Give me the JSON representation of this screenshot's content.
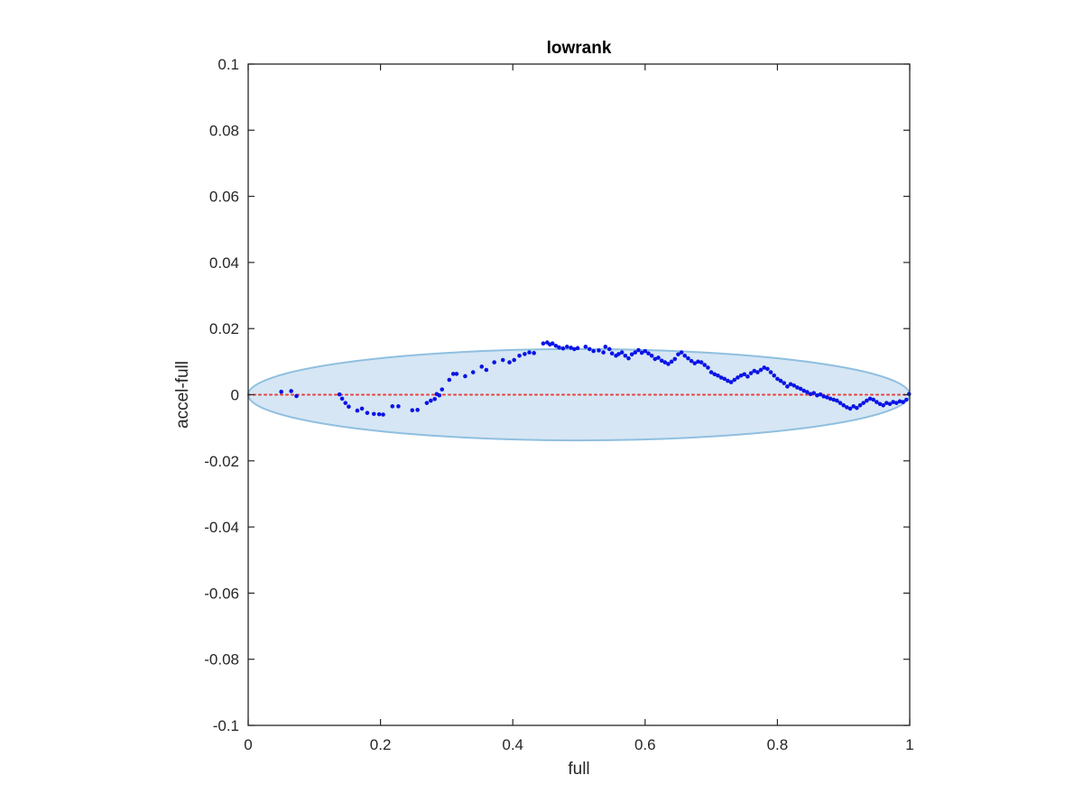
{
  "chart_data": {
    "type": "scatter",
    "title": "lowrank",
    "xlabel": "full",
    "ylabel": "accel-full",
    "xlim": [
      0,
      1
    ],
    "ylim": [
      -0.1,
      0.1
    ],
    "xticks": [
      0,
      0.2,
      0.4,
      0.6,
      0.8,
      1
    ],
    "xtick_labels": [
      "0",
      "0.2",
      "0.4",
      "0.6",
      "0.8",
      "1"
    ],
    "yticks": [
      0.1,
      0.08,
      0.06,
      0.04,
      0.02,
      0,
      -0.02,
      -0.04,
      -0.06,
      -0.08,
      -0.1
    ],
    "ytick_labels": [
      "0.1",
      "0.08",
      "0.06",
      "0.04",
      "0.02",
      "0",
      "-0.02",
      "-0.04",
      "-0.06",
      "-0.08",
      "-0.1"
    ],
    "grid": false,
    "reference_line": {
      "y": 0,
      "style": "dotted",
      "color": "#e8413c"
    },
    "confidence_ellipse": {
      "center_x": 0.5,
      "center_y": 0,
      "half_width": 0.5,
      "half_height": 0.0138,
      "fill": "#d6e6f4",
      "stroke": "#8fbfe0"
    },
    "series": [
      {
        "marker_color": "#0a14e6",
        "points": [
          [
            0.05,
            0.0009
          ],
          [
            0.065,
            0.0011
          ],
          [
            0.073,
            -0.0004
          ],
          [
            0.138,
            0.0001
          ],
          [
            0.142,
            -0.0012
          ],
          [
            0.147,
            -0.0025
          ],
          [
            0.152,
            -0.0036
          ],
          [
            0.165,
            -0.0048
          ],
          [
            0.172,
            -0.0042
          ],
          [
            0.18,
            -0.0055
          ],
          [
            0.19,
            -0.0058
          ],
          [
            0.198,
            -0.0059
          ],
          [
            0.204,
            -0.006
          ],
          [
            0.218,
            -0.0035
          ],
          [
            0.227,
            -0.0035
          ],
          [
            0.248,
            -0.0047
          ],
          [
            0.256,
            -0.0046
          ],
          [
            0.27,
            -0.0025
          ],
          [
            0.276,
            -0.0018
          ],
          [
            0.282,
            -0.0013
          ],
          [
            0.285,
            0.0002
          ],
          [
            0.289,
            -0.0002
          ],
          [
            0.293,
            0.0016
          ],
          [
            0.304,
            0.0045
          ],
          [
            0.31,
            0.0063
          ],
          [
            0.315,
            0.0063
          ],
          [
            0.328,
            0.0056
          ],
          [
            0.34,
            0.0068
          ],
          [
            0.353,
            0.0085
          ],
          [
            0.36,
            0.0075
          ],
          [
            0.372,
            0.0098
          ],
          [
            0.385,
            0.0105
          ],
          [
            0.395,
            0.0098
          ],
          [
            0.402,
            0.0105
          ],
          [
            0.41,
            0.0118
          ],
          [
            0.418,
            0.0123
          ],
          [
            0.425,
            0.0128
          ],
          [
            0.432,
            0.0126
          ],
          [
            0.446,
            0.0155
          ],
          [
            0.452,
            0.0158
          ],
          [
            0.456,
            0.0152
          ],
          [
            0.46,
            0.0155
          ],
          [
            0.465,
            0.0148
          ],
          [
            0.47,
            0.0143
          ],
          [
            0.476,
            0.014
          ],
          [
            0.482,
            0.0145
          ],
          [
            0.488,
            0.0142
          ],
          [
            0.493,
            0.0138
          ],
          [
            0.498,
            0.0141
          ],
          [
            0.51,
            0.0145
          ],
          [
            0.516,
            0.0138
          ],
          [
            0.522,
            0.0132
          ],
          [
            0.53,
            0.0134
          ],
          [
            0.537,
            0.0128
          ],
          [
            0.54,
            0.0145
          ],
          [
            0.546,
            0.0138
          ],
          [
            0.55,
            0.0125
          ],
          [
            0.556,
            0.0118
          ],
          [
            0.56,
            0.0123
          ],
          [
            0.565,
            0.0128
          ],
          [
            0.57,
            0.0118
          ],
          [
            0.575,
            0.011
          ],
          [
            0.58,
            0.0122
          ],
          [
            0.585,
            0.0128
          ],
          [
            0.59,
            0.0135
          ],
          [
            0.595,
            0.0127
          ],
          [
            0.6,
            0.0132
          ],
          [
            0.605,
            0.0125
          ],
          [
            0.61,
            0.0118
          ],
          [
            0.615,
            0.0108
          ],
          [
            0.62,
            0.0112
          ],
          [
            0.625,
            0.0103
          ],
          [
            0.63,
            0.0098
          ],
          [
            0.635,
            0.0093
          ],
          [
            0.64,
            0.01
          ],
          [
            0.645,
            0.0108
          ],
          [
            0.65,
            0.0122
          ],
          [
            0.655,
            0.0128
          ],
          [
            0.66,
            0.0118
          ],
          [
            0.665,
            0.011
          ],
          [
            0.67,
            0.0102
          ],
          [
            0.675,
            0.0095
          ],
          [
            0.68,
            0.01
          ],
          [
            0.685,
            0.0098
          ],
          [
            0.69,
            0.009
          ],
          [
            0.695,
            0.0082
          ],
          [
            0.7,
            0.0068
          ],
          [
            0.705,
            0.0062
          ],
          [
            0.71,
            0.0058
          ],
          [
            0.715,
            0.0052
          ],
          [
            0.72,
            0.0048
          ],
          [
            0.725,
            0.0042
          ],
          [
            0.73,
            0.0038
          ],
          [
            0.735,
            0.0045
          ],
          [
            0.74,
            0.0052
          ],
          [
            0.745,
            0.0058
          ],
          [
            0.75,
            0.0062
          ],
          [
            0.755,
            0.0055
          ],
          [
            0.76,
            0.0065
          ],
          [
            0.765,
            0.0072
          ],
          [
            0.77,
            0.0068
          ],
          [
            0.775,
            0.0075
          ],
          [
            0.78,
            0.0082
          ],
          [
            0.785,
            0.0078
          ],
          [
            0.79,
            0.0068
          ],
          [
            0.795,
            0.0058
          ],
          [
            0.8,
            0.0048
          ],
          [
            0.805,
            0.0042
          ],
          [
            0.81,
            0.0035
          ],
          [
            0.815,
            0.0025
          ],
          [
            0.82,
            0.0032
          ],
          [
            0.825,
            0.0028
          ],
          [
            0.83,
            0.0022
          ],
          [
            0.835,
            0.0018
          ],
          [
            0.84,
            0.0012
          ],
          [
            0.845,
            0.0008
          ],
          [
            0.85,
            0.0002
          ],
          [
            0.855,
            0.0005
          ],
          [
            0.86,
            -0.0002
          ],
          [
            0.865,
            0.0001
          ],
          [
            0.87,
            -0.0005
          ],
          [
            0.875,
            -0.0008
          ],
          [
            0.88,
            -0.0012
          ],
          [
            0.885,
            -0.0015
          ],
          [
            0.89,
            -0.0018
          ],
          [
            0.895,
            -0.0025
          ],
          [
            0.9,
            -0.0032
          ],
          [
            0.905,
            -0.0038
          ],
          [
            0.91,
            -0.0042
          ],
          [
            0.915,
            -0.0035
          ],
          [
            0.92,
            -0.004
          ],
          [
            0.925,
            -0.0032
          ],
          [
            0.93,
            -0.0025
          ],
          [
            0.935,
            -0.0018
          ],
          [
            0.94,
            -0.0012
          ],
          [
            0.945,
            -0.0015
          ],
          [
            0.95,
            -0.0022
          ],
          [
            0.955,
            -0.0028
          ],
          [
            0.96,
            -0.0032
          ],
          [
            0.965,
            -0.0025
          ],
          [
            0.97,
            -0.0028
          ],
          [
            0.975,
            -0.0022
          ],
          [
            0.98,
            -0.0025
          ],
          [
            0.985,
            -0.002
          ],
          [
            0.99,
            -0.0022
          ],
          [
            0.995,
            -0.0015
          ],
          [
            0.999,
            0.0002
          ]
        ]
      }
    ]
  }
}
